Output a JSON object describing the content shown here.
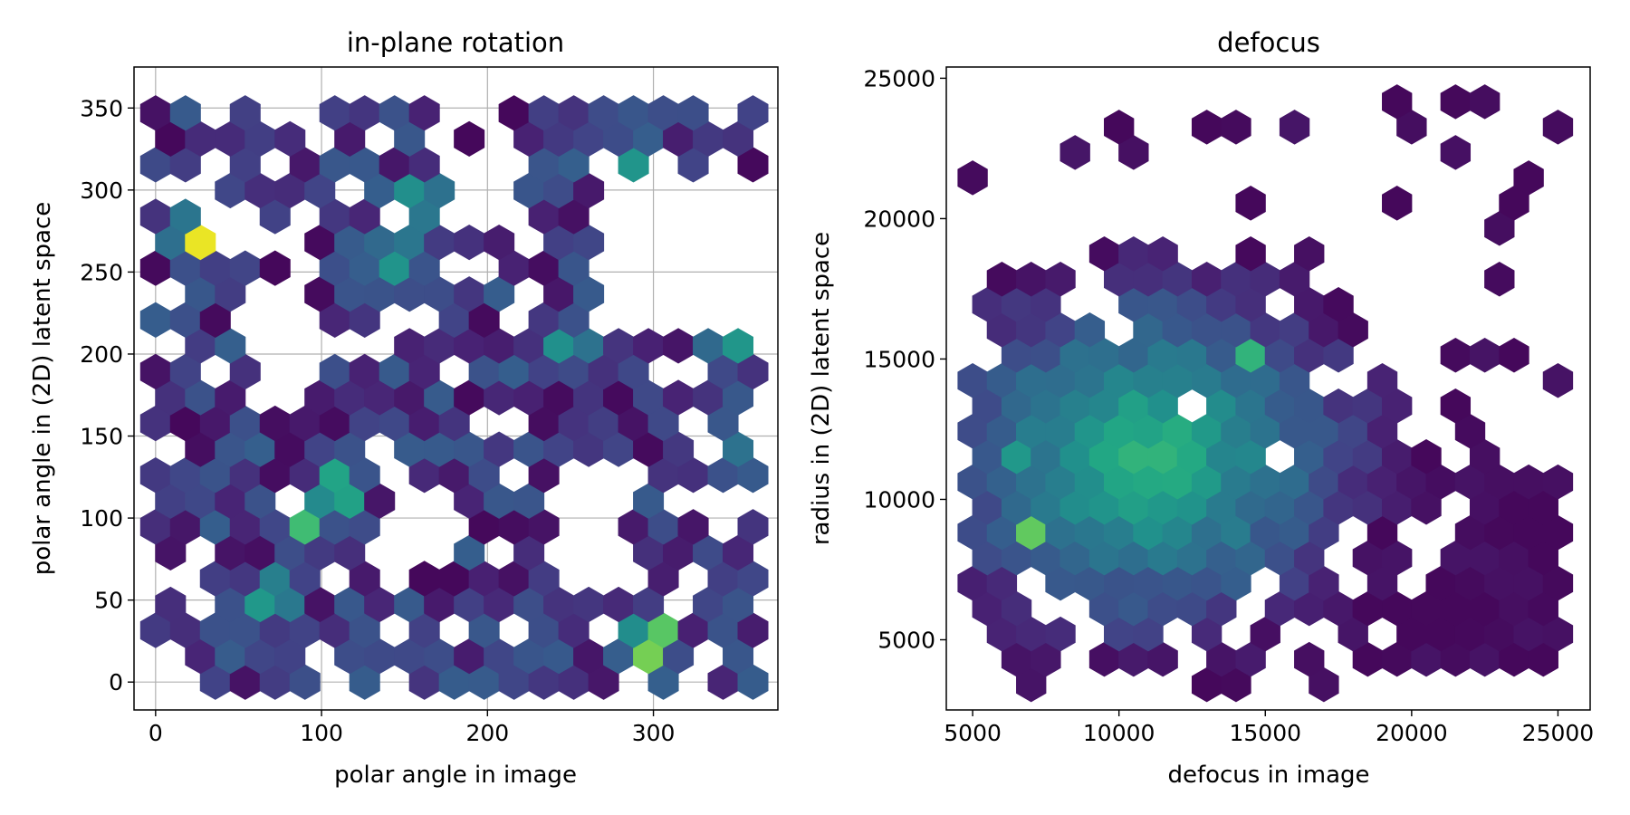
{
  "chart_data": [
    {
      "type": "hexbin",
      "title": "in-plane rotation",
      "xlabel": "polar angle in image",
      "ylabel": "polar angle in (2D) latent space",
      "xlim": [
        -13,
        375
      ],
      "ylim": [
        -17,
        375
      ],
      "xticks": [
        0,
        100,
        200,
        300
      ],
      "yticks": [
        0,
        50,
        100,
        150,
        200,
        250,
        300,
        350
      ],
      "grid": true,
      "colormap": "viridis",
      "gridsize": 20,
      "extent": [
        0,
        360,
        0,
        360
      ],
      "density_peaks": [
        {
          "x": 25,
          "y": 270,
          "level": 1.0
        },
        {
          "x": 300,
          "y": 27,
          "level": 0.92
        },
        {
          "x": 295,
          "y": 12,
          "level": 0.85
        },
        {
          "x": 90,
          "y": 102,
          "level": 0.85
        },
        {
          "x": 110,
          "y": 117,
          "level": 0.82
        },
        {
          "x": 70,
          "y": 52,
          "level": 0.7
        },
        {
          "x": 35,
          "y": 285,
          "level": 0.72
        },
        {
          "x": 160,
          "y": 295,
          "level": 0.65
        },
        {
          "x": 145,
          "y": 260,
          "level": 0.65
        },
        {
          "x": 285,
          "y": 310,
          "level": 0.6
        },
        {
          "x": 345,
          "y": 205,
          "level": 0.6
        },
        {
          "x": 340,
          "y": 142,
          "level": 0.6
        },
        {
          "x": 250,
          "y": 205,
          "level": 0.6
        }
      ],
      "empty_regions": [
        {
          "x": [
            60,
            90
          ],
          "y": [
            170,
            280
          ]
        },
        {
          "x": [
            180,
            220
          ],
          "y": [
            280,
            360
          ]
        },
        {
          "x": [
            270,
            360
          ],
          "y": [
            220,
            300
          ]
        },
        {
          "x": [
            130,
            185
          ],
          "y": [
            55,
            110
          ]
        },
        {
          "x": [
            240,
            280
          ],
          "y": [
            70,
            130
          ]
        }
      ]
    },
    {
      "type": "hexbin",
      "title": "defocus",
      "xlabel": "defocus in image",
      "ylabel": "radius in (2D) latent space",
      "xlim": [
        4100,
        26100
      ],
      "ylim": [
        2500,
        25400
      ],
      "xticks": [
        5000,
        10000,
        15000,
        20000,
        25000
      ],
      "yticks": [
        5000,
        10000,
        15000,
        20000,
        25000
      ],
      "grid": false,
      "colormap": "viridis",
      "gridsize": 20,
      "extent": [
        5000,
        25000,
        3400,
        24300
      ],
      "density_peaks": [
        {
          "x": 7000,
          "y": 11600,
          "level": 1.0
        },
        {
          "x": 9800,
          "y": 9400,
          "level": 1.0
        },
        {
          "x": 7000,
          "y": 8600,
          "level": 0.95
        },
        {
          "x": 14200,
          "y": 10100,
          "level": 0.92
        },
        {
          "x": 14700,
          "y": 15300,
          "level": 0.9
        },
        {
          "x": 10600,
          "y": 14000,
          "level": 0.85
        },
        {
          "x": 6200,
          "y": 11600,
          "level": 0.85
        },
        {
          "x": 8200,
          "y": 9300,
          "level": 0.85
        },
        {
          "x": 10000,
          "y": 11000,
          "level": 0.75
        },
        {
          "x": 12400,
          "y": 11800,
          "level": 0.7
        }
      ],
      "density_center": {
        "x": 11000,
        "y": 11500
      }
    }
  ]
}
